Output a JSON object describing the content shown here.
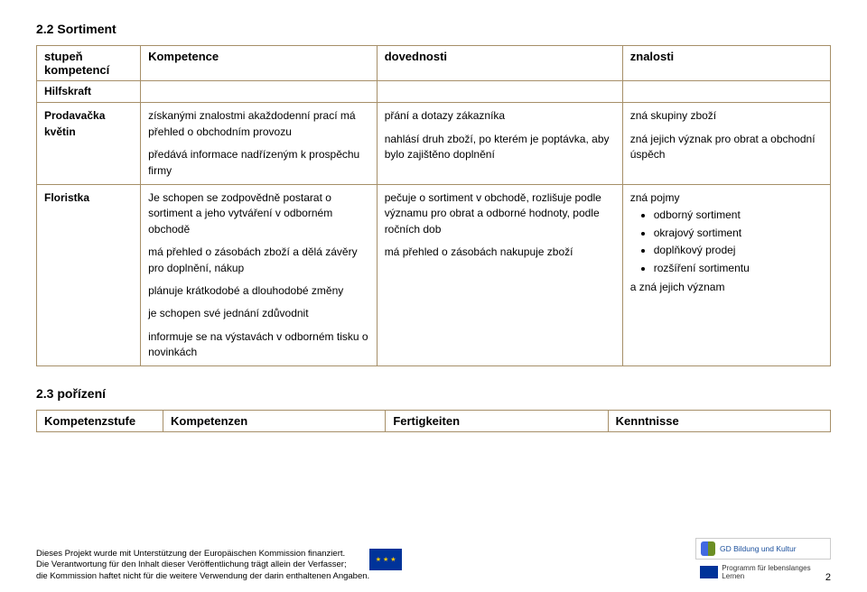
{
  "section1": {
    "title": "2.2 Sortiment",
    "headers": [
      "stupeň kompetencí",
      "Kompetence",
      "dovednosti",
      "znalosti"
    ],
    "hilfs": "Hilfskraft",
    "rows": [
      {
        "label": "Prodavačka květin",
        "c1": "získanými znalostmi akaždodenní prací má přehled o obchodním provozu\n\npředává informace nadřízeným k prospěchu firmy",
        "c2": "přání a dotazy zákazníka\n\nnahlásí druh zboží, po kterém je poptávka, aby bylo zajištěno doplnění",
        "c3": "zná skupiny zboží\n\nzná jejich význak pro obrat a obchodní úspěch"
      },
      {
        "label": "Floristka",
        "c1": "Je schopen se zodpovědně postarat o sortiment a jeho vytváření v odborném obchodě\n\nmá přehled o zásobách zboží a dělá závěry pro doplnění, nákup\n\nplánuje krátkodobé a dlouhodobé změny\n\nje schopen své jednání zdůvodnit\n\ninformuje se na výstavách v odborném tisku o novinkách",
        "c2": "pečuje o sortiment v obchodě, rozlišuje podle významu pro obrat a odborné hodnoty, podle ročních dob\n\nmá přehled o zásobách nakupuje zboží",
        "c3_pre": "zná pojmy",
        "c3_items": [
          "odborný sortiment",
          "okrajový sortiment",
          "doplňkový prodej",
          "rozšíření sortimentu"
        ],
        "c3_post": "a zná jejich význam"
      }
    ]
  },
  "section2": {
    "title": "2.3 pořízení",
    "headers": [
      "Kompetenzstufe",
      "Kompetenzen",
      "Fertigkeiten",
      "Kenntnisse"
    ]
  },
  "footer": {
    "l1": "Dieses Projekt wurde mit Unterstützung der Europäischen Kommission finanziert.",
    "l2": "Die Verantwortung für den Inhalt dieser Veröffentlichung trägt allein der Verfasser;",
    "l3": "die Kommission haftet nicht für die weitere Verwendung der darin enthaltenen Angaben.",
    "gd": "GD Bildung und Kultur",
    "lll": "Programm für lebenslanges Lernen"
  },
  "pagenum": "2"
}
